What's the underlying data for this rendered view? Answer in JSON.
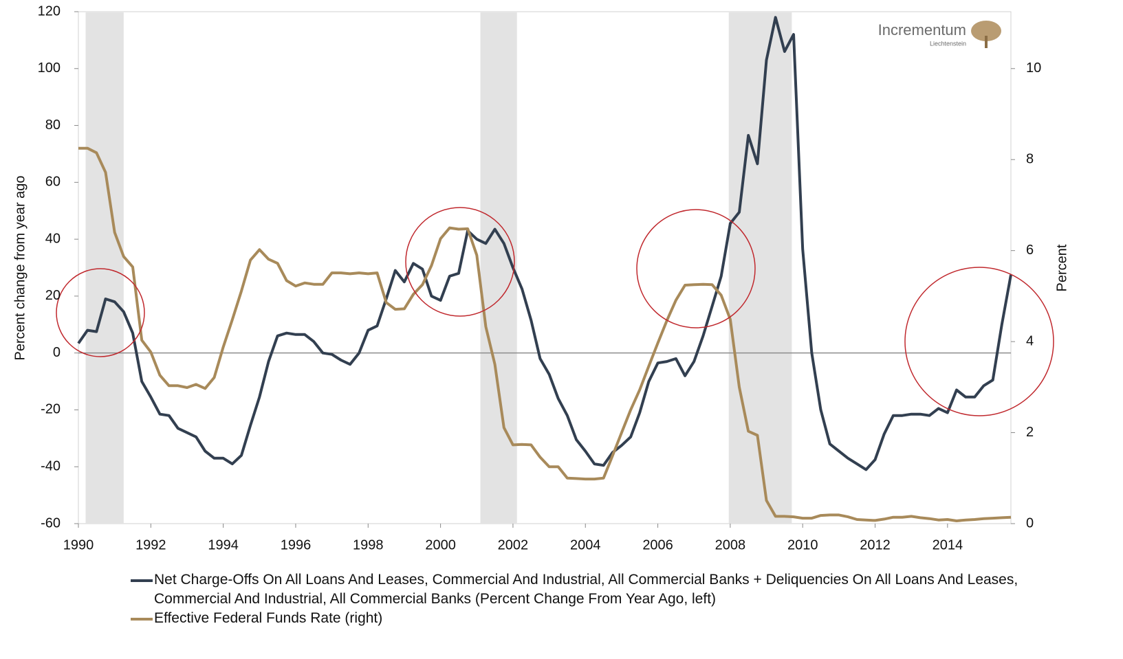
{
  "chart_data": {
    "type": "line",
    "y_label": "Percent change from year ago",
    "y2_label": "Percent",
    "logo": {
      "name": "Incrementum",
      "place": "Liechtenstein"
    },
    "x": [
      1990,
      1990.25,
      1990.5,
      1990.75,
      1991,
      1991.25,
      1991.5,
      1991.75,
      1992,
      1992.25,
      1992.5,
      1992.75,
      1993,
      1993.25,
      1993.5,
      1993.75,
      1994,
      1994.25,
      1994.5,
      1994.75,
      1995,
      1995.25,
      1995.5,
      1995.75,
      1996,
      1996.25,
      1996.5,
      1996.75,
      1997,
      1997.25,
      1997.5,
      1997.75,
      1998,
      1998.25,
      1998.5,
      1998.75,
      1999,
      1999.25,
      1999.5,
      1999.75,
      2000,
      2000.25,
      2000.5,
      2000.75,
      2001,
      2001.25,
      2001.5,
      2001.75,
      2002,
      2002.25,
      2002.5,
      2002.75,
      2003,
      2003.25,
      2003.5,
      2003.75,
      2004,
      2004.25,
      2004.5,
      2004.75,
      2005,
      2005.25,
      2005.5,
      2005.75,
      2006,
      2006.25,
      2006.5,
      2006.75,
      2007,
      2007.25,
      2007.5,
      2007.75,
      2008,
      2008.25,
      2008.5,
      2008.75,
      2009,
      2009.25,
      2009.5,
      2009.75,
      2010,
      2010.25,
      2010.5,
      2010.75,
      2011,
      2011.25,
      2011.5,
      2011.75,
      2012,
      2012.25,
      2012.5,
      2012.75,
      2013,
      2013.25,
      2013.5,
      2013.75,
      2014,
      2014.25,
      2014.5,
      2014.75,
      2015,
      2015.25,
      2015.5,
      2015.75
    ],
    "series": [
      {
        "name": "Net Charge-Offs On All Loans And Leases, Commercial And Industrial, All Commercial Banks + Deliquencies On All Loans And Leases, Commercial And Industrial, All Commercial Banks (Percent Change From Year Ago, left)",
        "color": "#323f50",
        "axis": "y",
        "values": [
          3.4,
          8,
          7.5,
          19,
          18,
          14.5,
          7,
          -10,
          -15.5,
          -21.5,
          -22,
          -26.5,
          -28,
          -29.5,
          -34.5,
          -37,
          -37,
          -39,
          -36,
          -25.5,
          -15.5,
          -3,
          6,
          7,
          6.5,
          6.5,
          4,
          0,
          -0.5,
          -2.5,
          -4,
          0,
          8,
          9.5,
          19,
          29,
          25,
          31.5,
          29.5,
          20,
          18.5,
          27,
          28,
          43,
          40,
          38.5,
          43.5,
          38.5,
          30,
          22.5,
          11.5,
          -2,
          -7.5,
          -16,
          -22,
          -30.5,
          -34.5,
          -39,
          -39.5,
          -35,
          -32.5,
          -29.5,
          -21,
          -10,
          -3.5,
          -3,
          -2,
          -8,
          -3,
          6,
          16.5,
          27,
          45.5,
          49.5,
          76.5,
          66.5,
          103,
          118,
          106,
          112,
          36.5,
          0,
          -20,
          -32,
          -34.5,
          -37,
          -39,
          -41,
          -37.5,
          -28.5,
          -22,
          -22,
          -21.5,
          -21.5,
          -22,
          -19.5,
          -21,
          -13,
          -15.5,
          -15.5,
          -11.5,
          -9.5,
          10,
          27.5
        ]
      },
      {
        "name": "Effective Federal Funds Rate (right)",
        "color": "#a88a5a",
        "axis": "y2",
        "values": [
          8.25,
          8.25,
          8.15,
          7.72,
          6.4,
          5.87,
          5.64,
          4.03,
          3.77,
          3.26,
          3.03,
          3.03,
          2.99,
          3.06,
          2.97,
          3.21,
          3.88,
          4.48,
          5.11,
          5.79,
          6.02,
          5.81,
          5.72,
          5.34,
          5.22,
          5.29,
          5.26,
          5.26,
          5.51,
          5.51,
          5.49,
          5.51,
          5.49,
          5.51,
          4.86,
          4.71,
          4.72,
          5.04,
          5.25,
          5.67,
          6.26,
          6.5,
          6.47,
          6.48,
          5.9,
          4.33,
          3.5,
          2.11,
          1.73,
          1.74,
          1.73,
          1.46,
          1.25,
          1.25,
          1.0,
          0.99,
          0.98,
          0.98,
          1.0,
          1.49,
          2.0,
          2.5,
          2.94,
          3.46,
          3.97,
          4.46,
          4.91,
          5.24,
          5.25,
          5.26,
          5.25,
          5.02,
          4.49,
          3.0,
          2.03,
          1.94,
          0.51,
          0.16,
          0.16,
          0.15,
          0.12,
          0.12,
          0.18,
          0.19,
          0.19,
          0.15,
          0.09,
          0.08,
          0.07,
          0.1,
          0.14,
          0.14,
          0.16,
          0.13,
          0.11,
          0.08,
          0.09,
          0.06,
          0.08,
          0.09,
          0.11,
          0.12,
          0.13,
          0.14
        ]
      }
    ],
    "recessions": [
      [
        1990.2,
        1991.25
      ],
      [
        2001.1,
        2002.11
      ],
      [
        2007.96,
        2009.7
      ]
    ],
    "recession_color": "#e3e3e3",
    "xlim": [
      1990,
      2015.75
    ],
    "xticks": [
      1990,
      1992,
      1994,
      1996,
      1998,
      2000,
      2002,
      2004,
      2006,
      2008,
      2010,
      2012,
      2014
    ],
    "ylim": [
      -60,
      120
    ],
    "yticks": [
      -60,
      -40,
      -20,
      0,
      20,
      40,
      60,
      80,
      100,
      120
    ],
    "y2lim": [
      0,
      11.25
    ],
    "y2ticks": [
      0,
      2,
      4,
      6,
      8,
      10
    ]
  }
}
